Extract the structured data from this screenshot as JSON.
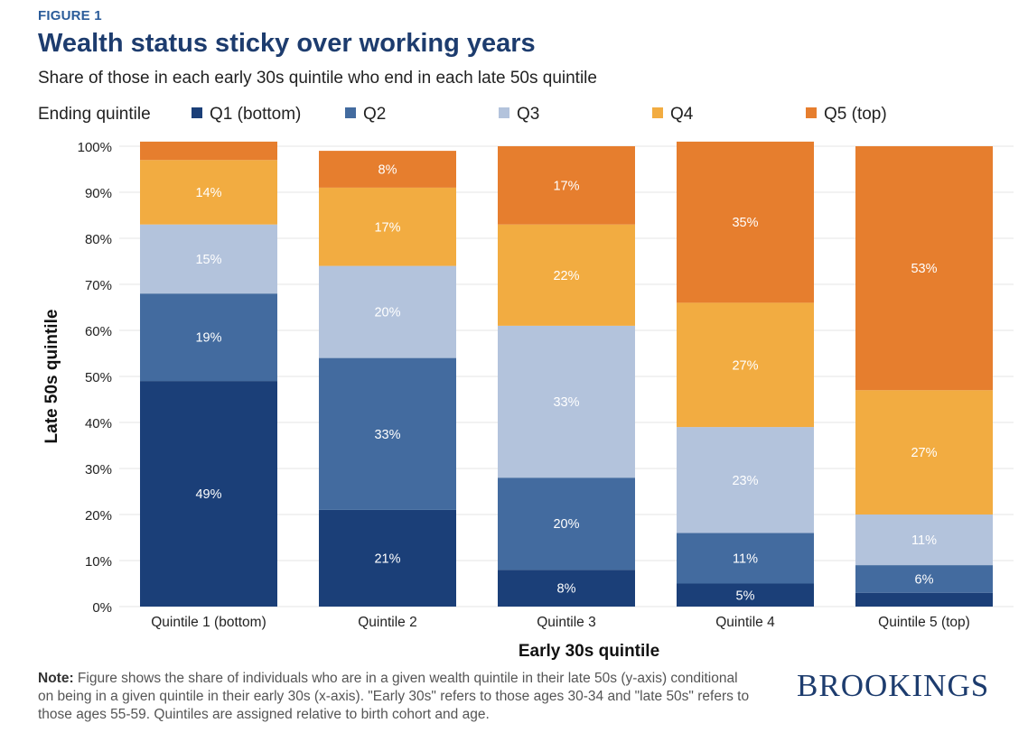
{
  "header": {
    "figure_label": "FIGURE 1",
    "title": "Wealth status sticky over working years",
    "subtitle": "Share of those in each early 30s quintile who end in each late 50s quintile"
  },
  "legend": {
    "title": "Ending quintile",
    "items": [
      {
        "label": "Q1 (bottom)",
        "color": "#1b3f78"
      },
      {
        "label": "Q2",
        "color": "#436b9f"
      },
      {
        "label": "Q3",
        "color": "#b3c3dc"
      },
      {
        "label": "Q4",
        "color": "#f2ac41"
      },
      {
        "label": "Q5 (top)",
        "color": "#e67e2e"
      }
    ]
  },
  "chart_data": {
    "type": "bar",
    "stacked": true,
    "title": "Wealth status sticky over working years",
    "xlabel": "Early 30s quintile",
    "ylabel": "Late 50s quintile",
    "ylim": [
      0,
      100
    ],
    "yticks": [
      "0%",
      "10%",
      "20%",
      "30%",
      "40%",
      "50%",
      "60%",
      "70%",
      "80%",
      "90%",
      "100%"
    ],
    "grid": true,
    "legend_position": "top",
    "categories": [
      "Quintile 1 (bottom)",
      "Quintile 2",
      "Quintile 3",
      "Quintile 4",
      "Quintile 5 (top)"
    ],
    "series": [
      {
        "name": "Q1 (bottom)",
        "color": "#1b3f78",
        "values": [
          49,
          21,
          8,
          5,
          3
        ],
        "labels": [
          "49%",
          "21%",
          "8%",
          "5%",
          ""
        ]
      },
      {
        "name": "Q2",
        "color": "#436b9f",
        "values": [
          19,
          33,
          20,
          11,
          6
        ],
        "labels": [
          "19%",
          "33%",
          "20%",
          "11%",
          "6%"
        ]
      },
      {
        "name": "Q3",
        "color": "#b3c3dc",
        "values": [
          15,
          20,
          33,
          23,
          11
        ],
        "labels": [
          "15%",
          "20%",
          "33%",
          "23%",
          "11%"
        ]
      },
      {
        "name": "Q4",
        "color": "#f2ac41",
        "values": [
          14,
          17,
          22,
          27,
          27
        ],
        "labels": [
          "14%",
          "17%",
          "22%",
          "27%",
          "27%"
        ]
      },
      {
        "name": "Q5 (top)",
        "color": "#e67e2e",
        "values": [
          4,
          8,
          17,
          35,
          53
        ],
        "labels": [
          "",
          "8%",
          "17%",
          "35%",
          "53%"
        ]
      }
    ]
  },
  "footer": {
    "note_label": "Note:",
    "note_text": " Figure shows the share of individuals who are in a given wealth quintile in their late 50s (y-axis) conditional on being in a given quintile in their early 30s (x-axis). \"Early 30s\" refers to those ages 30-34 and \"late 50s\" refers to those ages 55-59. Quintiles are assigned relative to birth cohort and age.",
    "brand": "BROOKINGS"
  }
}
